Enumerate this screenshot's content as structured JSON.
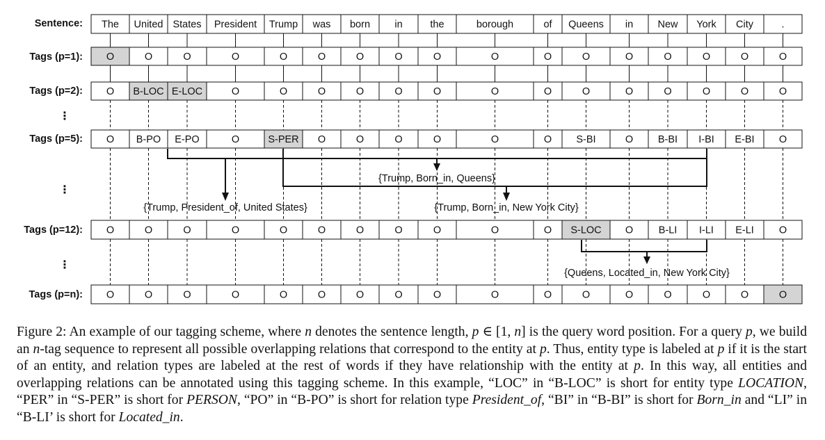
{
  "labels": {
    "sentence": "Sentence:",
    "tags_p1": "Tags (p=1):",
    "tags_p2": "Tags (p=2):",
    "tags_p5": "Tags (p=5):",
    "tags_p12": "Tags (p=12):",
    "tags_pn": "Tags (p=n):",
    "ellipsis": "⋮"
  },
  "sentence": [
    "The",
    "United",
    "States",
    "President",
    "Trump",
    "was",
    "born",
    "in",
    "the",
    "borough",
    "of",
    "Queens",
    "in",
    "New",
    "York",
    "City",
    "."
  ],
  "rows": {
    "p1": {
      "tags": [
        "O",
        "O",
        "O",
        "O",
        "O",
        "O",
        "O",
        "O",
        "O",
        "O",
        "O",
        "O",
        "O",
        "O",
        "O",
        "O",
        "O"
      ],
      "highlight": [
        0
      ]
    },
    "p2": {
      "tags": [
        "O",
        "B-LOC",
        "E-LOC",
        "O",
        "O",
        "O",
        "O",
        "O",
        "O",
        "O",
        "O",
        "O",
        "O",
        "O",
        "O",
        "O",
        "O"
      ],
      "highlight": [
        1,
        2
      ]
    },
    "p5": {
      "tags": [
        "O",
        "B-PO",
        "E-PO",
        "O",
        "S-PER",
        "O",
        "O",
        "O",
        "O",
        "O",
        "O",
        "S-BI",
        "O",
        "B-BI",
        "I-BI",
        "E-BI",
        "O"
      ],
      "highlight": [
        4
      ]
    },
    "p12": {
      "tags": [
        "O",
        "O",
        "O",
        "O",
        "O",
        "O",
        "O",
        "O",
        "O",
        "O",
        "O",
        "S-LOC",
        "O",
        "B-LI",
        "I-LI",
        "E-LI",
        "O"
      ],
      "highlight": [
        11
      ]
    },
    "pn": {
      "tags": [
        "O",
        "O",
        "O",
        "O",
        "O",
        "O",
        "O",
        "O",
        "O",
        "O",
        "O",
        "O",
        "O",
        "O",
        "O",
        "O",
        "O"
      ],
      "highlight": [
        16
      ]
    }
  },
  "annotations": {
    "born_in_queens": "{Trump, Born_in, Queens}",
    "president_of": "{Trump, President_of, United States}",
    "born_in_nyc": "{Trump, Born_in, New York City}",
    "located_in": "{Queens, Located_in, New York City}"
  },
  "caption": {
    "p1": "Figure 2: An example of our tagging scheme, where ",
    "n1": "n",
    "p2": " denotes the sentence length, ",
    "p_var1": "p",
    "p3": " ∈ [1, ",
    "n2": "n",
    "p4": "] is the query word position. For a query ",
    "p_var2": "p",
    "p5": ", we build an ",
    "n3": "n",
    "p6": "-tag sequence to represent all possible overlapping relations that correspond to the entity at ",
    "p_var3": "p",
    "p7": ". Thus, entity type is labeled at ",
    "p_var4": "p",
    "p8": " if it is the start of an entity, and relation types are labeled at the rest of words if they have relationship with the entity at ",
    "p_var5": "p",
    "p9": ". In this way, all entities and overlapping relations can be annotated using this tagging scheme. In this example, “LOC” in “B-LOC” is short for entity type ",
    "it_location": "LOCATION",
    "p10": ", “PER” in “S-PER” is short for ",
    "it_person": "PERSON",
    "p11": ", “PO” in “B-PO” is short for relation type ",
    "it_president_of": "President_of",
    "p12": ", “BI” in “B-BI” is short for ",
    "it_born_in": "Born_in",
    "p13": " and “LI” in “B-LI’ is short for ",
    "it_located_in": "Located_in",
    "p14": "."
  },
  "colors": {
    "highlight": "#d4d4d4",
    "line": "#111111",
    "background": "#ffffff"
  }
}
